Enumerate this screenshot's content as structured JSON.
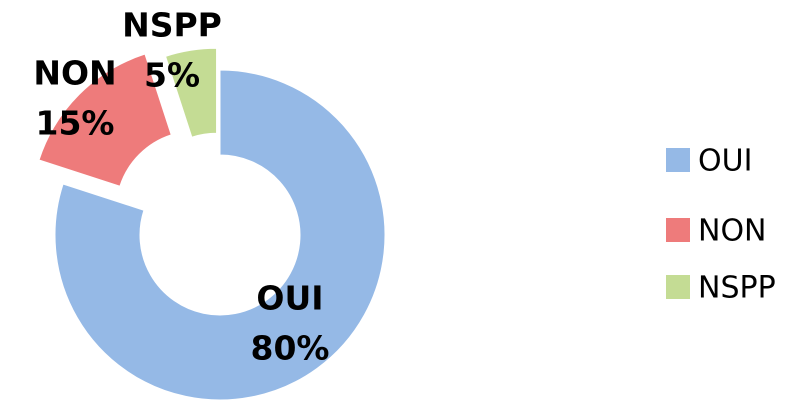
{
  "chart_data": {
    "type": "donut",
    "categories": [
      "OUI",
      "NON",
      "NSPP"
    ],
    "values": [
      80,
      15,
      5
    ],
    "value_labels": [
      "80%",
      "15%",
      "5%"
    ],
    "colors": [
      "#95b9e6",
      "#ee7b7b",
      "#c4dc94"
    ],
    "legend": "right"
  }
}
